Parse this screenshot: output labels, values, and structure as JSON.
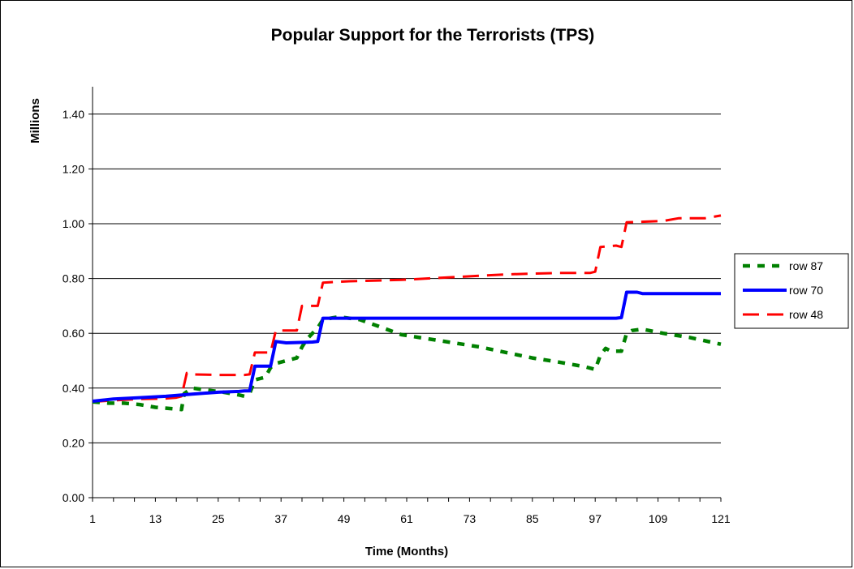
{
  "chart_data": {
    "type": "line",
    "title": "Popular Support for the Terrorists (TPS)",
    "xlabel": "Time (Months)",
    "ylabel": "Millions",
    "x_ticks": [
      1,
      13,
      25,
      37,
      49,
      61,
      73,
      85,
      97,
      109,
      121
    ],
    "y_ticks": [
      "0.00",
      "0.20",
      "0.40",
      "0.60",
      "0.80",
      "1.00",
      "1.20",
      "1.40"
    ],
    "xlim": [
      1,
      121
    ],
    "ylim": [
      0,
      1.5
    ],
    "grid": "horizontal",
    "legend_position": "right",
    "series": [
      {
        "name": "row 87",
        "color": "#008000",
        "style": "dotted",
        "points": [
          [
            1,
            0.35
          ],
          [
            4,
            0.345
          ],
          [
            7,
            0.345
          ],
          [
            10,
            0.34
          ],
          [
            13,
            0.33
          ],
          [
            16,
            0.325
          ],
          [
            18,
            0.322
          ],
          [
            18.5,
            0.38
          ],
          [
            20,
            0.4
          ],
          [
            22,
            0.395
          ],
          [
            26,
            0.385
          ],
          [
            29,
            0.375
          ],
          [
            30,
            0.37
          ],
          [
            31,
            0.38
          ],
          [
            32,
            0.43
          ],
          [
            33,
            0.435
          ],
          [
            34,
            0.44
          ],
          [
            35,
            0.475
          ],
          [
            36,
            0.49
          ],
          [
            38,
            0.5
          ],
          [
            40,
            0.51
          ],
          [
            41,
            0.55
          ],
          [
            42,
            0.58
          ],
          [
            44,
            0.62
          ],
          [
            45,
            0.65
          ],
          [
            48,
            0.66
          ],
          [
            52,
            0.65
          ],
          [
            55,
            0.63
          ],
          [
            60,
            0.595
          ],
          [
            65,
            0.58
          ],
          [
            70,
            0.565
          ],
          [
            75,
            0.55
          ],
          [
            80,
            0.53
          ],
          [
            85,
            0.51
          ],
          [
            90,
            0.495
          ],
          [
            95,
            0.478
          ],
          [
            97,
            0.468
          ],
          [
            98,
            0.52
          ],
          [
            99,
            0.545
          ],
          [
            100,
            0.535
          ],
          [
            102,
            0.535
          ],
          [
            103,
            0.6
          ],
          [
            104,
            0.61
          ],
          [
            106,
            0.615
          ],
          [
            110,
            0.6
          ],
          [
            115,
            0.585
          ],
          [
            121,
            0.56
          ]
        ]
      },
      {
        "name": "row 70",
        "color": "#0000ff",
        "style": "solid",
        "points": [
          [
            1,
            0.352
          ],
          [
            5,
            0.36
          ],
          [
            10,
            0.365
          ],
          [
            15,
            0.37
          ],
          [
            20,
            0.378
          ],
          [
            25,
            0.385
          ],
          [
            29,
            0.388
          ],
          [
            30,
            0.39
          ],
          [
            31,
            0.39
          ],
          [
            32,
            0.48
          ],
          [
            34,
            0.48
          ],
          [
            35,
            0.48
          ],
          [
            36,
            0.57
          ],
          [
            38,
            0.565
          ],
          [
            43,
            0.568
          ],
          [
            44,
            0.57
          ],
          [
            45,
            0.655
          ],
          [
            60,
            0.655
          ],
          [
            80,
            0.655
          ],
          [
            101,
            0.655
          ],
          [
            102,
            0.657
          ],
          [
            103,
            0.75
          ],
          [
            105,
            0.75
          ],
          [
            106,
            0.745
          ],
          [
            121,
            0.745
          ]
        ]
      },
      {
        "name": "row 48",
        "color": "#ff0000",
        "style": "dashed",
        "points": [
          [
            1,
            0.35
          ],
          [
            5,
            0.355
          ],
          [
            10,
            0.36
          ],
          [
            15,
            0.362
          ],
          [
            17,
            0.365
          ],
          [
            18,
            0.37
          ],
          [
            19,
            0.455
          ],
          [
            20,
            0.45
          ],
          [
            25,
            0.448
          ],
          [
            30,
            0.448
          ],
          [
            31,
            0.45
          ],
          [
            32,
            0.53
          ],
          [
            34,
            0.53
          ],
          [
            35,
            0.53
          ],
          [
            36,
            0.61
          ],
          [
            40,
            0.61
          ],
          [
            41,
            0.7
          ],
          [
            43,
            0.7
          ],
          [
            44,
            0.7
          ],
          [
            45,
            0.785
          ],
          [
            50,
            0.79
          ],
          [
            60,
            0.795
          ],
          [
            70,
            0.805
          ],
          [
            80,
            0.815
          ],
          [
            90,
            0.82
          ],
          [
            96,
            0.82
          ],
          [
            97,
            0.825
          ],
          [
            98,
            0.915
          ],
          [
            101,
            0.92
          ],
          [
            102,
            0.915
          ],
          [
            103,
            1.005
          ],
          [
            110,
            1.01
          ],
          [
            113,
            1.02
          ],
          [
            118,
            1.02
          ],
          [
            121,
            1.03
          ]
        ]
      }
    ]
  }
}
